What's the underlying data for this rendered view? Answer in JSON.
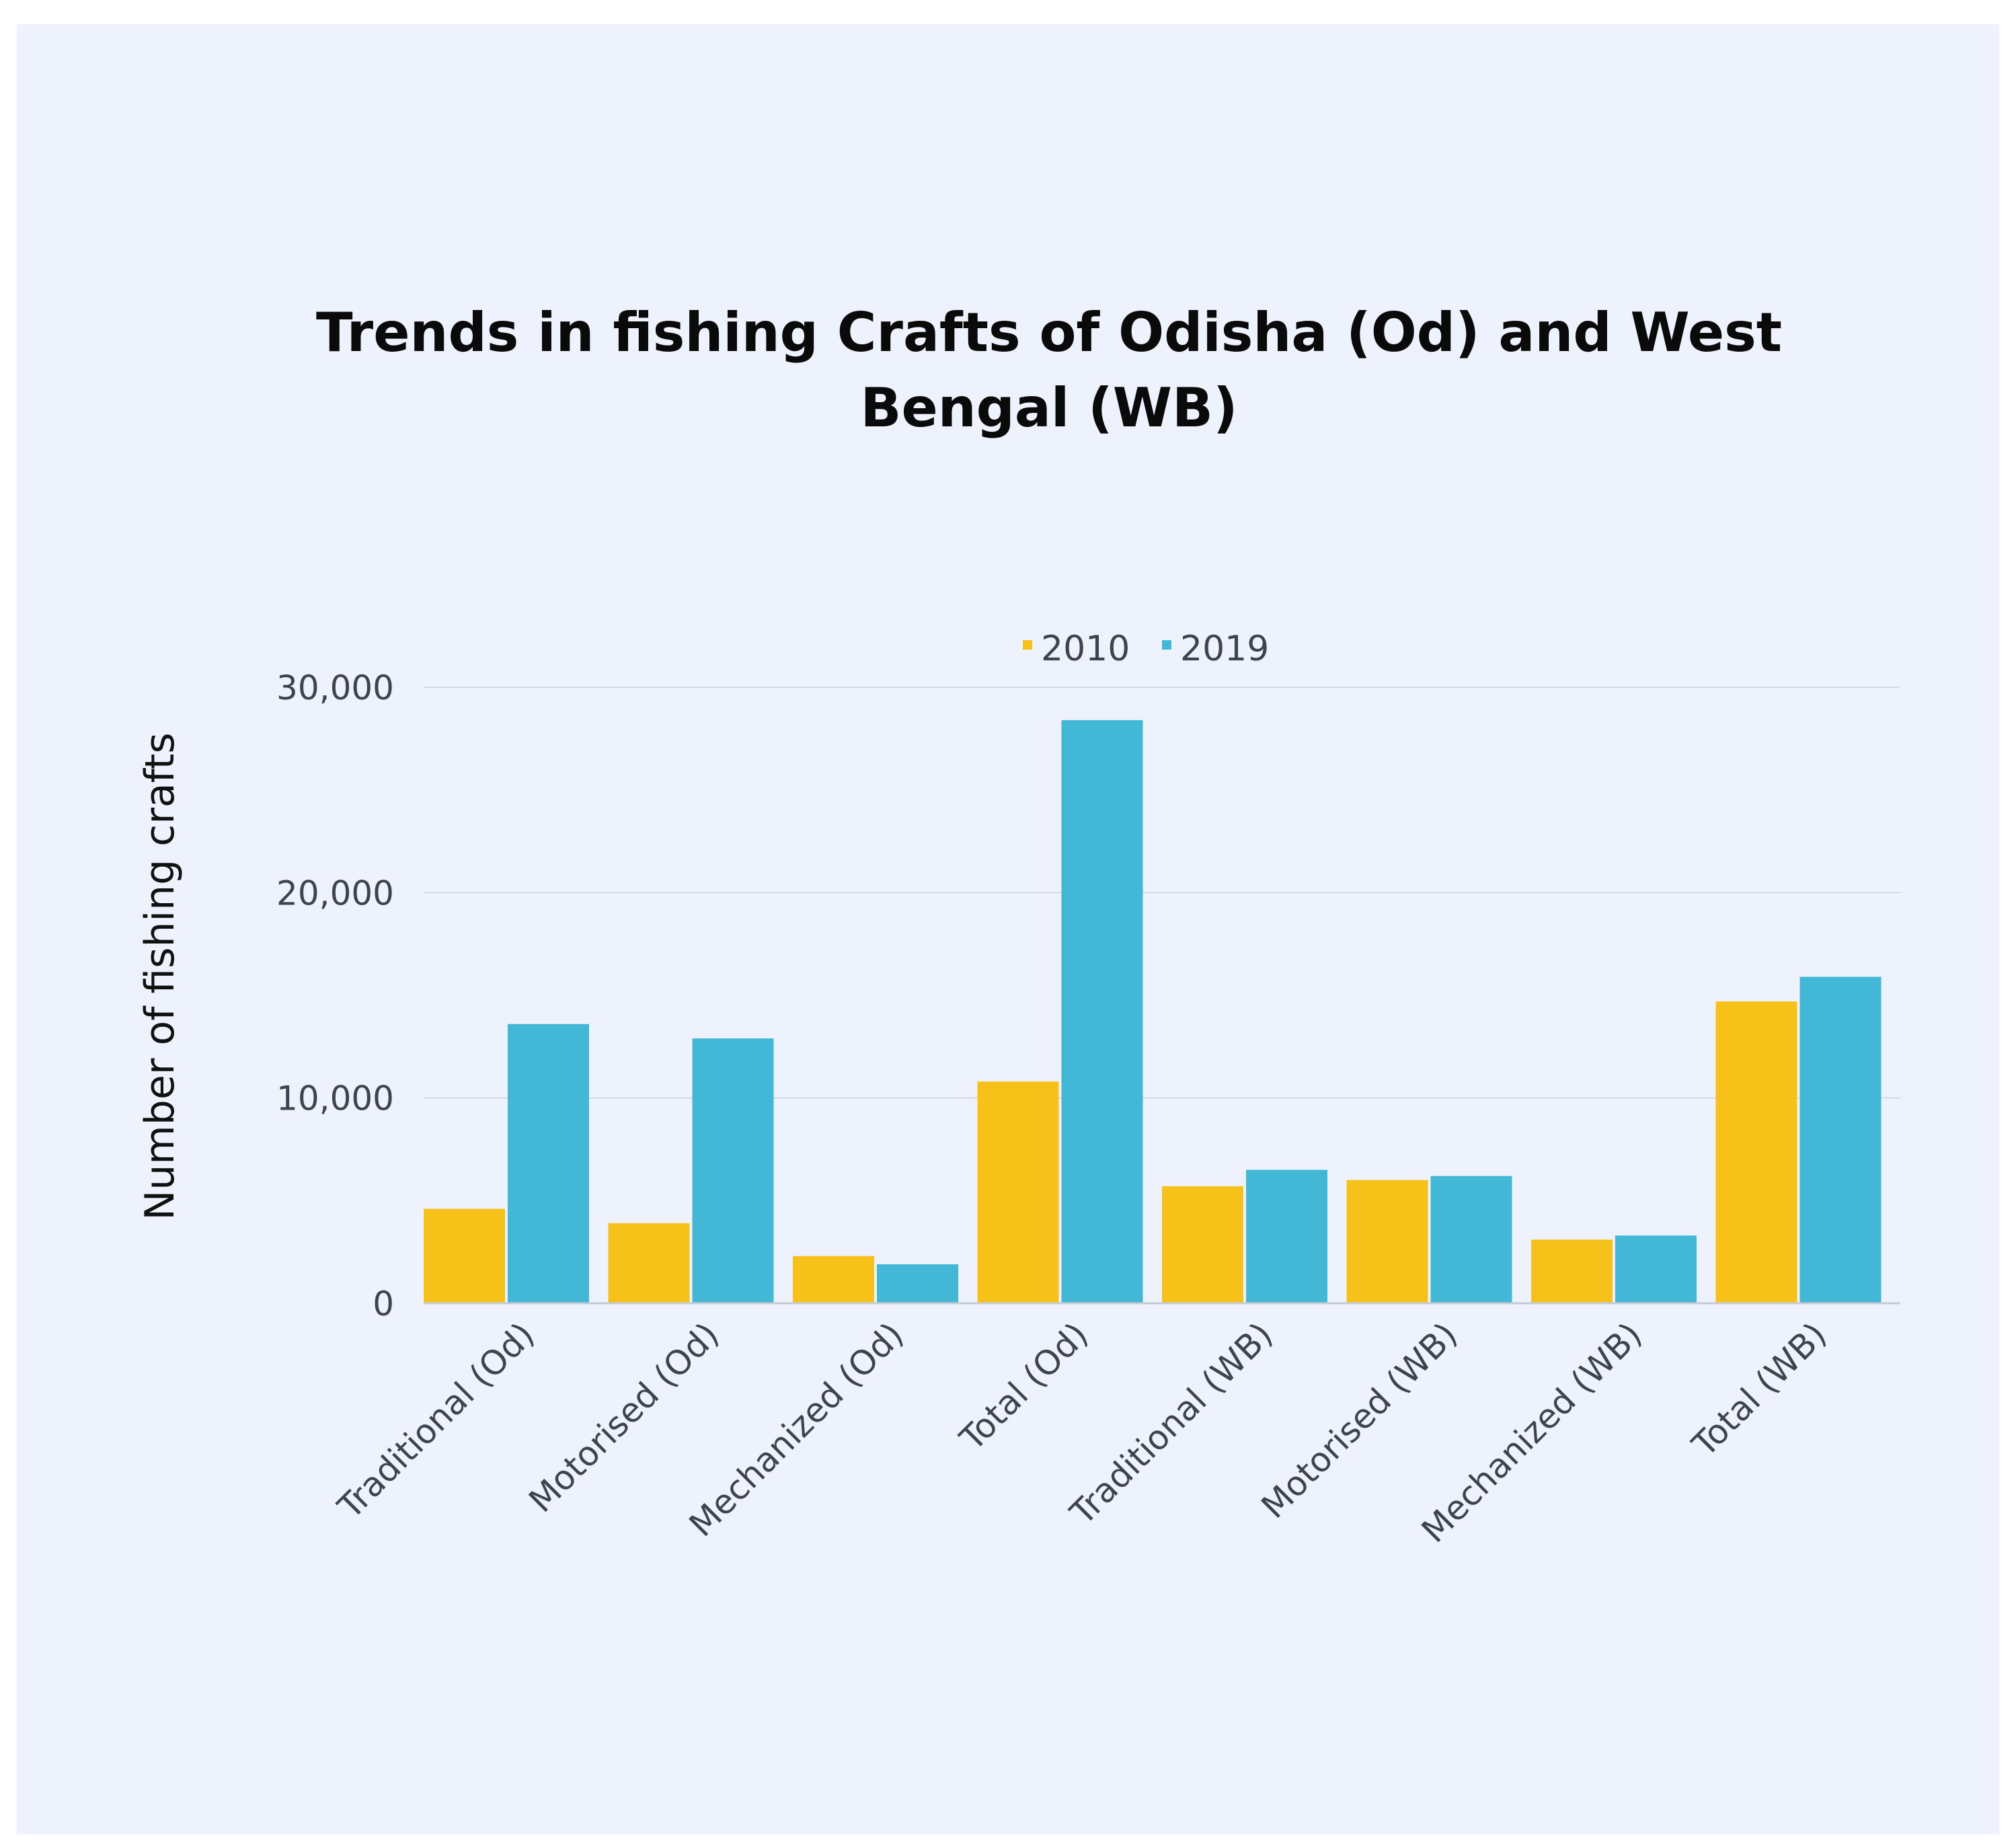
{
  "chart_data": {
    "type": "bar",
    "title": "Trends in fishing Crafts of Odisha (Od) and West Bengal (WB)",
    "title_lines": [
      "Trends in fishing Crafts of Odisha (Od) and West",
      "Bengal (WB)"
    ],
    "xlabel": "",
    "ylabel": "Number of fishing crafts",
    "categories": [
      "Traditional (Od)",
      "Motorised (Od)",
      "Mechanized (Od)",
      "Total (Od)",
      "Traditional (WB)",
      "Motorised (WB)",
      "Mechanized (WB)",
      "Total (WB)"
    ],
    "series": [
      {
        "name": "2010",
        "color": "#f6c118",
        "values": [
          4600,
          3900,
          2300,
          10800,
          5700,
          6000,
          3100,
          14700
        ]
      },
      {
        "name": "2019",
        "color": "#43b7d6",
        "values": [
          13600,
          12900,
          1900,
          28400,
          6500,
          6200,
          3300,
          15900
        ]
      }
    ],
    "ylim": [
      0,
      30000
    ],
    "yticks": [
      0,
      10000,
      20000,
      30000
    ],
    "ytick_labels": [
      "0",
      "10,000",
      "20,000",
      "30,000"
    ],
    "grid": true,
    "legend": "top-center"
  }
}
